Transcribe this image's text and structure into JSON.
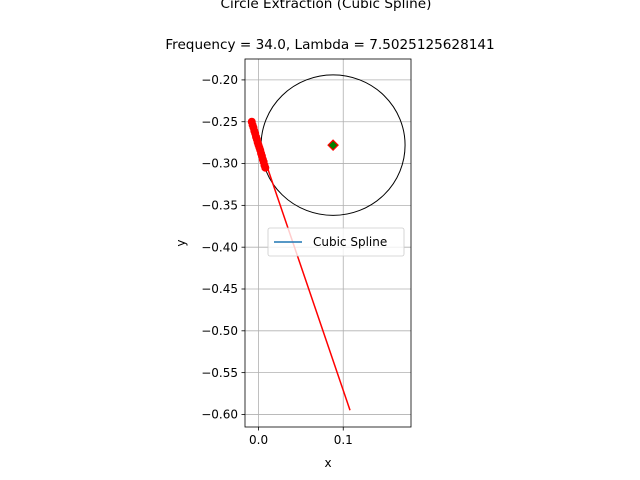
{
  "chart_data": {
    "type": "line",
    "suptitle": "Circle Extraction (Cubic Spline)",
    "title": "Frequency = 34.0, Lambda = 7.5025125628141",
    "xlabel": "x",
    "ylabel": "y",
    "xlim": [
      -0.016,
      0.18
    ],
    "ylim": [
      -0.615,
      -0.175
    ],
    "xticks": [
      0.0,
      0.1
    ],
    "xtick_labels": [
      "0.0",
      "0.1"
    ],
    "yticks": [
      -0.2,
      -0.25,
      -0.3,
      -0.35,
      -0.4,
      -0.45,
      -0.5,
      -0.55,
      -0.6
    ],
    "ytick_labels": [
      "−0.20",
      "−0.25",
      "−0.30",
      "−0.35",
      "−0.40",
      "−0.45",
      "−0.50",
      "−0.55",
      "−0.60"
    ],
    "grid": true,
    "legend": {
      "placement": "center-right",
      "entries": [
        "Cubic Spline"
      ]
    },
    "series": [
      {
        "name": "Cubic Spline",
        "color": "#1f77b4",
        "x": [
          -0.008,
          -0.006,
          -0.004,
          -0.002,
          0.0,
          0.002,
          0.004,
          0.006,
          0.008
        ],
        "y": [
          -0.25,
          -0.257,
          -0.264,
          -0.271,
          -0.278,
          -0.284,
          -0.291,
          -0.298,
          -0.305
        ]
      }
    ],
    "red_points": {
      "color": "#ff0000",
      "x": [
        -0.008,
        -0.007,
        -0.006,
        -0.005,
        -0.004,
        -0.003,
        -0.002,
        -0.001,
        0.0,
        0.001,
        0.002,
        0.003,
        0.004,
        0.005,
        0.006,
        0.007,
        0.008
      ],
      "y": [
        -0.25,
        -0.254,
        -0.257,
        -0.261,
        -0.264,
        -0.268,
        -0.271,
        -0.275,
        -0.278,
        -0.281,
        -0.284,
        -0.288,
        -0.291,
        -0.295,
        -0.298,
        -0.302,
        -0.305
      ]
    },
    "red_line": {
      "color": "#ff0000",
      "x": [
        -0.008,
        0.108
      ],
      "y": [
        -0.25,
        -0.595
      ]
    },
    "circle": {
      "color": "#000000",
      "center": [
        0.088,
        -0.278
      ],
      "radius_x": 0.085,
      "radius_y": 0.084
    },
    "center_marker": {
      "x": 0.088,
      "y": -0.278,
      "fill": "#008000",
      "edge": "#ff0000"
    }
  }
}
